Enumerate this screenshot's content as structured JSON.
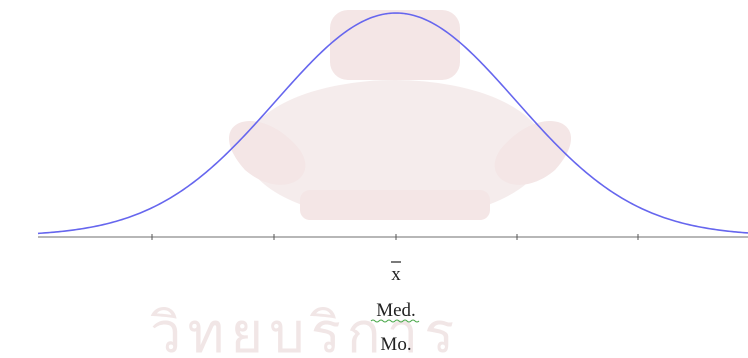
{
  "diagram": {
    "labels": {
      "mean": "x",
      "median": "Med.",
      "mode": "Mo."
    },
    "watermark": {
      "text": "วิทยบริการ"
    },
    "colors": {
      "curve": "#6666ee",
      "axis": "#6f6f6f",
      "text": "#222222",
      "squiggle": "#4aa84a",
      "watermark": "#f4e6e6"
    },
    "icon_names": {
      "mean_symbol": "x-bar-icon"
    }
  }
}
